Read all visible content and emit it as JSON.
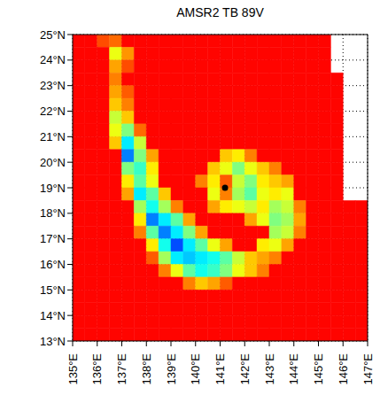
{
  "chart_data": {
    "type": "heatmap",
    "title": "AMSR2 TB 89V",
    "xlim": [
      135,
      147
    ],
    "ylim": [
      13,
      25
    ],
    "xticks": [
      {
        "value": 135,
        "label": "135°E"
      },
      {
        "value": 136,
        "label": "136°E"
      },
      {
        "value": 137,
        "label": "137°E"
      },
      {
        "value": 138,
        "label": "138°E"
      },
      {
        "value": 139,
        "label": "139°E"
      },
      {
        "value": 140,
        "label": "140°E"
      },
      {
        "value": 141,
        "label": "141°E"
      },
      {
        "value": 142,
        "label": "142°E"
      },
      {
        "value": 143,
        "label": "143°E"
      },
      {
        "value": 144,
        "label": "144°E"
      },
      {
        "value": 145,
        "label": "145°E"
      },
      {
        "value": 146,
        "label": "146°E"
      },
      {
        "value": 147,
        "label": "147°E"
      }
    ],
    "yticks": [
      {
        "value": 13,
        "label": "13°N"
      },
      {
        "value": 14,
        "label": "14°N"
      },
      {
        "value": 15,
        "label": "15°N"
      },
      {
        "value": 16,
        "label": "16°N"
      },
      {
        "value": 17,
        "label": "17°N"
      },
      {
        "value": 18,
        "label": "18°N"
      },
      {
        "value": 19,
        "label": "19°N"
      },
      {
        "value": 20,
        "label": "20°N"
      },
      {
        "value": 21,
        "label": "21°N"
      },
      {
        "value": 22,
        "label": "22°N"
      },
      {
        "value": 23,
        "label": "23°N"
      },
      {
        "value": 24,
        "label": "24°N"
      },
      {
        "value": 25,
        "label": "25°N"
      }
    ],
    "grid": true,
    "color_range": [
      150,
      290
    ],
    "center": [
      141.2,
      19.0
    ],
    "cells": [
      [
        272,
        272,
        262,
        258,
        272,
        272,
        272,
        272,
        272,
        272,
        272,
        272,
        272,
        272,
        272,
        272,
        272,
        272,
        272,
        272,
        272,
        null,
        null,
        null
      ],
      [
        272,
        272,
        272,
        235,
        252,
        272,
        272,
        272,
        272,
        272,
        272,
        272,
        272,
        272,
        272,
        272,
        272,
        272,
        272,
        272,
        272,
        null,
        null,
        null
      ],
      [
        272,
        272,
        272,
        250,
        262,
        272,
        272,
        272,
        272,
        272,
        272,
        272,
        272,
        272,
        272,
        272,
        272,
        272,
        272,
        272,
        272,
        null,
        null,
        null
      ],
      [
        272,
        272,
        272,
        255,
        272,
        272,
        272,
        272,
        272,
        272,
        272,
        272,
        272,
        272,
        272,
        272,
        272,
        272,
        272,
        272,
        272,
        272,
        null,
        null
      ],
      [
        272,
        272,
        272,
        250,
        260,
        272,
        272,
        272,
        272,
        272,
        272,
        272,
        272,
        272,
        272,
        272,
        272,
        272,
        272,
        272,
        272,
        272,
        null,
        null
      ],
      [
        272,
        272,
        272,
        245,
        255,
        272,
        272,
        272,
        272,
        272,
        272,
        272,
        272,
        272,
        272,
        272,
        272,
        272,
        272,
        272,
        272,
        272,
        null,
        null
      ],
      [
        272,
        272,
        272,
        230,
        245,
        272,
        272,
        272,
        272,
        272,
        272,
        272,
        272,
        272,
        272,
        272,
        272,
        272,
        272,
        272,
        272,
        272,
        null,
        null
      ],
      [
        272,
        272,
        272,
        235,
        220,
        258,
        272,
        272,
        272,
        272,
        272,
        272,
        272,
        272,
        272,
        272,
        272,
        272,
        272,
        272,
        272,
        272,
        null,
        null
      ],
      [
        272,
        272,
        272,
        245,
        200,
        230,
        272,
        272,
        272,
        272,
        272,
        272,
        272,
        272,
        272,
        272,
        272,
        272,
        272,
        272,
        272,
        272,
        null,
        null
      ],
      [
        272,
        272,
        272,
        272,
        185,
        220,
        250,
        272,
        272,
        272,
        272,
        272,
        245,
        240,
        255,
        272,
        272,
        272,
        272,
        272,
        272,
        272,
        null,
        null
      ],
      [
        272,
        272,
        272,
        272,
        220,
        210,
        240,
        272,
        272,
        272,
        272,
        245,
        235,
        220,
        235,
        245,
        255,
        272,
        272,
        272,
        272,
        272,
        null,
        null
      ],
      [
        272,
        272,
        272,
        272,
        240,
        215,
        235,
        272,
        272,
        272,
        255,
        240,
        260,
        230,
        220,
        240,
        245,
        250,
        272,
        272,
        272,
        272,
        null,
        null
      ],
      [
        272,
        272,
        272,
        272,
        250,
        200,
        215,
        245,
        272,
        272,
        272,
        235,
        255,
        225,
        215,
        235,
        240,
        235,
        272,
        272,
        272,
        272,
        null,
        null
      ],
      [
        272,
        272,
        272,
        272,
        272,
        225,
        205,
        225,
        255,
        272,
        272,
        250,
        240,
        235,
        230,
        240,
        225,
        230,
        255,
        272,
        272,
        272,
        272,
        272
      ],
      [
        272,
        272,
        272,
        272,
        272,
        240,
        185,
        200,
        215,
        250,
        272,
        272,
        272,
        272,
        250,
        235,
        220,
        225,
        250,
        272,
        272,
        272,
        272,
        272
      ],
      [
        272,
        272,
        272,
        272,
        272,
        255,
        215,
        185,
        200,
        220,
        250,
        272,
        272,
        272,
        272,
        272,
        225,
        230,
        255,
        272,
        272,
        272,
        272,
        272
      ],
      [
        272,
        272,
        272,
        272,
        272,
        272,
        240,
        205,
        178,
        200,
        215,
        235,
        250,
        272,
        272,
        240,
        235,
        250,
        272,
        272,
        272,
        272,
        272,
        272
      ],
      [
        272,
        272,
        272,
        272,
        272,
        272,
        260,
        225,
        200,
        195,
        200,
        205,
        215,
        230,
        245,
        250,
        255,
        272,
        272,
        272,
        272,
        272,
        272,
        272
      ],
      [
        272,
        272,
        272,
        272,
        272,
        272,
        272,
        255,
        235,
        215,
        205,
        210,
        220,
        235,
        245,
        255,
        272,
        272,
        272,
        272,
        272,
        272,
        272,
        272
      ],
      [
        272,
        272,
        272,
        272,
        272,
        272,
        272,
        272,
        272,
        255,
        245,
        250,
        260,
        272,
        272,
        272,
        272,
        272,
        272,
        272,
        272,
        272,
        272,
        272
      ],
      [
        272,
        272,
        272,
        272,
        272,
        272,
        272,
        272,
        272,
        272,
        272,
        272,
        272,
        272,
        272,
        272,
        272,
        272,
        272,
        272,
        272,
        272,
        272,
        272
      ],
      [
        272,
        272,
        272,
        272,
        272,
        272,
        272,
        272,
        272,
        272,
        272,
        272,
        272,
        272,
        272,
        272,
        272,
        272,
        272,
        272,
        272,
        272,
        272,
        272
      ],
      [
        272,
        272,
        272,
        272,
        272,
        272,
        272,
        272,
        272,
        272,
        272,
        272,
        272,
        272,
        272,
        272,
        272,
        272,
        272,
        272,
        272,
        272,
        272,
        272
      ],
      [
        272,
        272,
        272,
        272,
        272,
        272,
        272,
        272,
        272,
        272,
        272,
        272,
        272,
        272,
        272,
        272,
        272,
        272,
        272,
        272,
        272,
        272,
        272,
        272
      ]
    ]
  }
}
